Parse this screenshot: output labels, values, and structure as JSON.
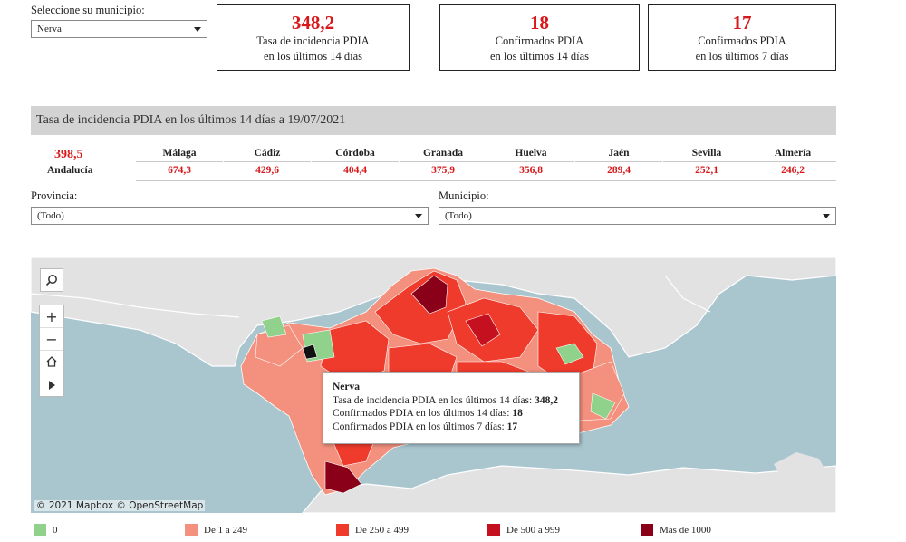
{
  "municipio_selector": {
    "label": "Seleccione su municipio:",
    "value": "Nerva"
  },
  "kpis": [
    {
      "value": "348,2",
      "line1": "Tasa de incidencia PDIA",
      "line2": "en los últimos 14 días"
    },
    {
      "value": "18",
      "line1": "Confirmados PDIA",
      "line2": "en los últimos 14 días"
    },
    {
      "value": "17",
      "line1": "Confirmados PDIA",
      "line2": "en los últimos 7 días"
    }
  ],
  "banner": "Tasa de incidencia PDIA en los últimos 14 días a 19/07/2021",
  "andalucia": {
    "value": "398,5",
    "label": "Andalucía"
  },
  "provinces": [
    {
      "name": "Málaga",
      "value": "674,3"
    },
    {
      "name": "Cádiz",
      "value": "429,6"
    },
    {
      "name": "Córdoba",
      "value": "404,4"
    },
    {
      "name": "Granada",
      "value": "375,9"
    },
    {
      "name": "Huelva",
      "value": "356,8"
    },
    {
      "name": "Jaén",
      "value": "289,4"
    },
    {
      "name": "Sevilla",
      "value": "252,1"
    },
    {
      "name": "Almería",
      "value": "246,2"
    }
  ],
  "filters": {
    "provincia": {
      "label": "Provincia:",
      "value": "(Todo)"
    },
    "municipio": {
      "label": "Municipio:",
      "value": "(Todo)"
    }
  },
  "map": {
    "attribution": "© 2021 Mapbox  © OpenStreetMap",
    "controls": {
      "search": "search-icon",
      "zoom_in": "+",
      "zoom_out": "−",
      "home": "home-icon",
      "play": "play-icon"
    }
  },
  "tooltip": {
    "name": "Nerva",
    "rows": [
      {
        "label": "Tasa de incidencia PDIA en los últimos 14 días:",
        "value": "348,2"
      },
      {
        "label": "Confirmados PDIA en los últimos 14 días:",
        "value": "18"
      },
      {
        "label": "Confirmados PDIA en los últimos 7 días:",
        "value": "17"
      }
    ]
  },
  "legend": [
    {
      "label": "0",
      "color": "#90d18b"
    },
    {
      "label": "De 1 a 249",
      "color": "#f4907e"
    },
    {
      "label": "De 250 a 499",
      "color": "#ef3b2c"
    },
    {
      "label": "De 500 a 999",
      "color": "#c4101f"
    },
    {
      "label": "Más de 1000",
      "color": "#8b0019"
    }
  ],
  "colors": {
    "accent_red": "#d7191c",
    "sea": "#a9c6cf",
    "land": "#e2e2e2",
    "banner_bg": "#d3d3d3"
  }
}
